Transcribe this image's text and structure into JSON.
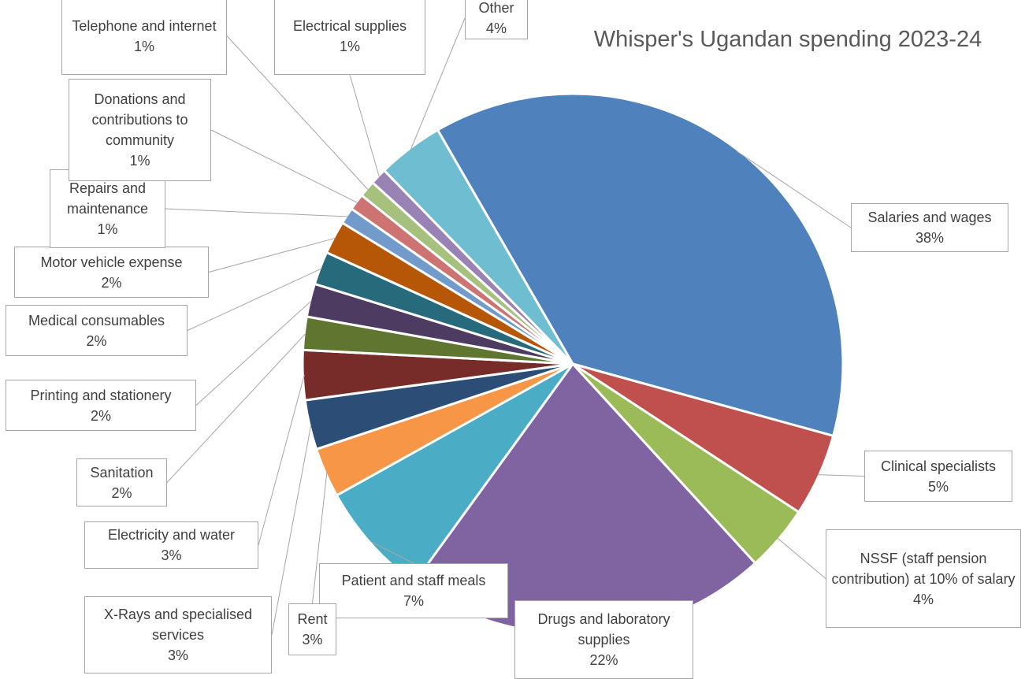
{
  "chart_data": {
    "type": "pie",
    "title": "Whisper's Ugandan spending 2023-24",
    "categories": [
      "Salaries and wages",
      "Clinical specialists",
      "NSSF (staff pension contribution) at 10% of salary",
      "Drugs and laboratory supplies",
      "Patient and staff meals",
      "Rent",
      "X-Rays and specialised services",
      "Electricity and water",
      "Sanitation",
      "Printing and stationery",
      "Medical consumables",
      "Motor vehicle expense",
      "Repairs and maintenance",
      "Donations and contributions to community",
      "Telephone and internet",
      "Electrical supplies",
      "Other"
    ],
    "values": [
      38,
      5,
      4,
      22,
      7,
      3,
      3,
      3,
      2,
      2,
      2,
      2,
      1,
      1,
      1,
      1,
      4
    ],
    "value_labels": [
      "38%",
      "5%",
      "4%",
      "22%",
      "7%",
      "3%",
      "3%",
      "3%",
      "2%",
      "2%",
      "2%",
      "2%",
      "1%",
      "1%",
      "1%",
      "1%",
      "4%"
    ],
    "colors": [
      "#4f81bd",
      "#c0504d",
      "#9bbb59",
      "#8064a2",
      "#4bacc6",
      "#f79646",
      "#2c4d75",
      "#772c2a",
      "#5f7530",
      "#4d3b62",
      "#276a7c",
      "#b65708",
      "#729aca",
      "#cd7371",
      "#a5c17d",
      "#9983b5",
      "#6fbdd1"
    ]
  }
}
